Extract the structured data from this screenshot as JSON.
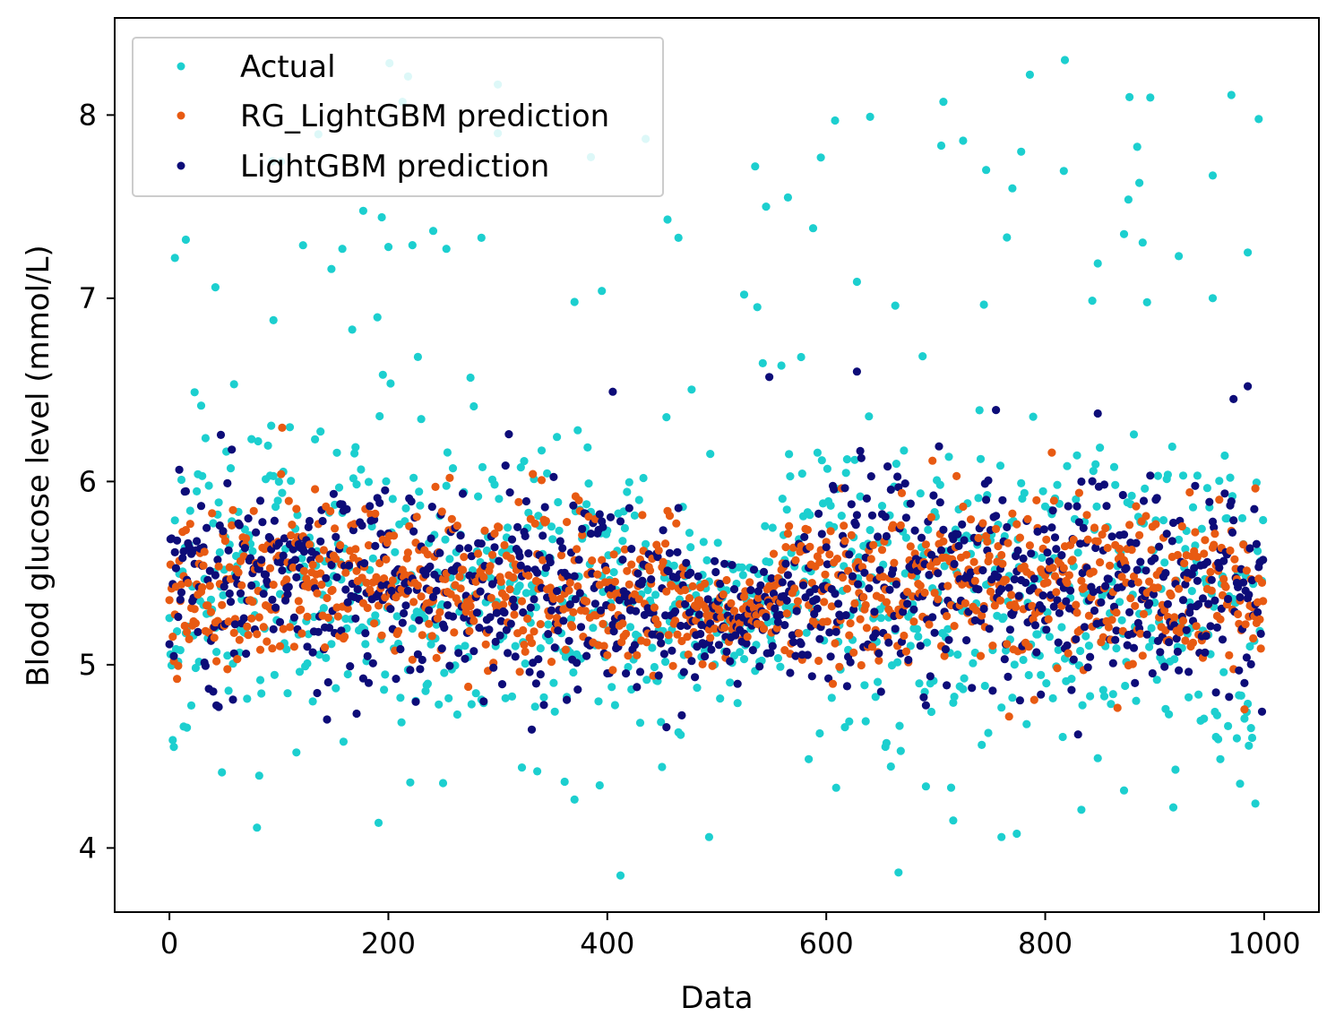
{
  "chart_data": {
    "type": "scatter",
    "title": "",
    "xlabel": "Data",
    "ylabel": "Blood glucose level (mmol/L)",
    "xlim": [
      -50,
      1050
    ],
    "ylim": [
      3.65,
      8.53
    ],
    "xticks": [
      0,
      200,
      400,
      600,
      800,
      1000
    ],
    "xtick_labels": [
      "0",
      "200",
      "400",
      "600",
      "800",
      "1000"
    ],
    "yticks": [
      4,
      5,
      6,
      7,
      8
    ],
    "ytick_labels": [
      "4",
      "5",
      "6",
      "7",
      "8"
    ],
    "grid": false,
    "legend_position": "top-left",
    "n_points_per_series": 1000,
    "series": [
      {
        "name": "Actual",
        "legend_label": "Actual",
        "color": "#1ccfcf",
        "center": 5.4,
        "spread": 0.42,
        "outlier_rate": 0.09,
        "outlier_low": 3.85,
        "outlier_high": 8.3
      },
      {
        "name": "RG_LightGBM prediction",
        "legend_label": "RG_LightGBM prediction",
        "color": "#e85a12",
        "center": 5.42,
        "spread": 0.22,
        "outlier_rate": 0.0,
        "outlier_low": 4.95,
        "outlier_high": 6.1
      },
      {
        "name": "LightGBM prediction",
        "legend_label": "LightGBM prediction",
        "color": "#0d0c78",
        "center": 5.4,
        "spread": 0.27,
        "outlier_rate": 0.02,
        "outlier_low": 4.8,
        "outlier_high": 6.6
      }
    ],
    "notable_points": {
      "Actual": [
        [
          5,
          7.22
        ],
        [
          15,
          7.32
        ],
        [
          42,
          7.06
        ],
        [
          95,
          6.88
        ],
        [
          148,
          7.16
        ],
        [
          158,
          7.27
        ],
        [
          200,
          7.28
        ],
        [
          218,
          8.21
        ],
        [
          222,
          7.29
        ],
        [
          253,
          7.27
        ],
        [
          285,
          7.33
        ],
        [
          300,
          7.9
        ],
        [
          370,
          6.98
        ],
        [
          385,
          7.77
        ],
        [
          395,
          7.04
        ],
        [
          412,
          3.85
        ],
        [
          435,
          7.87
        ],
        [
          455,
          7.43
        ],
        [
          465,
          7.33
        ],
        [
          493,
          4.06
        ],
        [
          525,
          7.02
        ],
        [
          535,
          7.72
        ],
        [
          545,
          7.5
        ],
        [
          565,
          7.55
        ],
        [
          608,
          7.97
        ],
        [
          628,
          7.09
        ],
        [
          640,
          7.99
        ],
        [
          663,
          6.96
        ],
        [
          716,
          4.15
        ],
        [
          725,
          7.86
        ],
        [
          746,
          7.7
        ],
        [
          760,
          4.06
        ],
        [
          770,
          7.6
        ],
        [
          778,
          7.8
        ],
        [
          818,
          8.3
        ],
        [
          848,
          7.19
        ],
        [
          872,
          7.35
        ],
        [
          886,
          7.63
        ],
        [
          922,
          7.23
        ],
        [
          953,
          7.67
        ],
        [
          985,
          7.25
        ]
      ],
      "RG_LightGBM prediction": [],
      "LightGBM prediction": [
        [
          405,
          6.49
        ],
        [
          548,
          6.57
        ],
        [
          628,
          6.6
        ],
        [
          755,
          6.39
        ],
        [
          972,
          6.45
        ],
        [
          985,
          6.52
        ]
      ]
    }
  }
}
